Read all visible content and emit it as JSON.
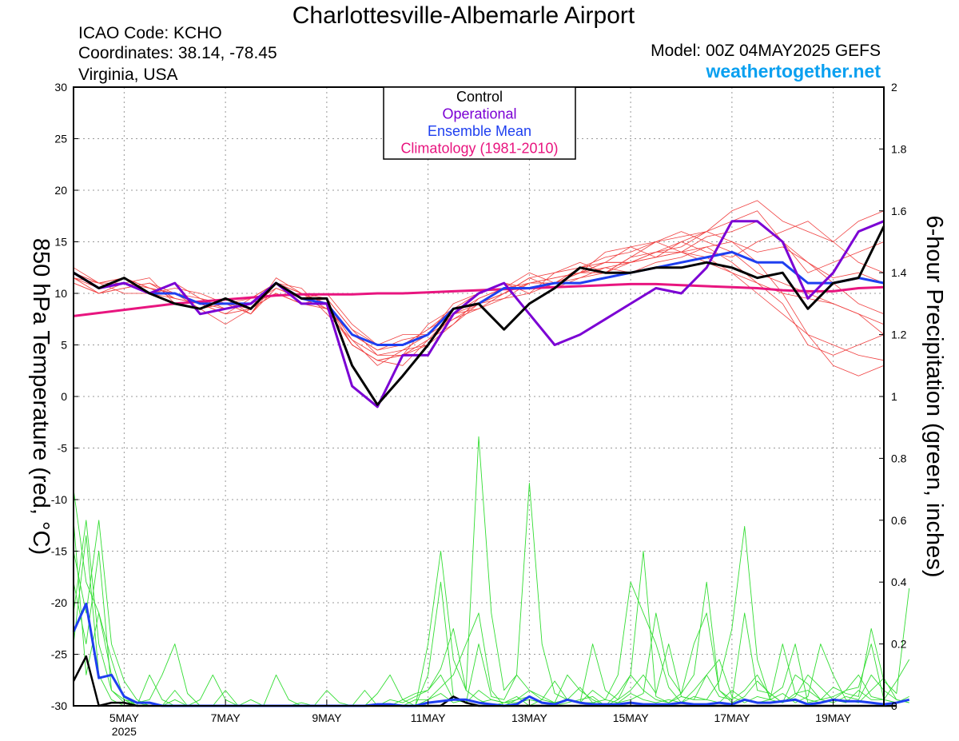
{
  "header": {
    "title": "Charlottesville-Albemarle Airport",
    "icao": "ICAO Code: KCHO",
    "coords": "Coordinates: 38.14, -78.45",
    "region": "Virginia, USA",
    "model": "Model: 00Z 04MAY2025 GEFS",
    "site": "weathertogether.net"
  },
  "colors": {
    "control": "#000000",
    "operational": "#7b00d4",
    "mean": "#1e3ff0",
    "climatology": "#e8157f",
    "members_temp": "#f04040",
    "members_precip": "#33dd33",
    "site": "#0aa0f0"
  },
  "chart_data": {
    "type": "line",
    "ylabel": "850 hPa Temperature (red, °C)",
    "y2label": "6-hour Precipitation (green, inches)",
    "ylim": [
      -30,
      30
    ],
    "y2lim": [
      0,
      2
    ],
    "yticks": [
      "30",
      "25",
      "20",
      "15",
      "10",
      "5",
      "0",
      "-5",
      "-10",
      "-15",
      "-20",
      "-25",
      "-30"
    ],
    "y2ticks": [
      "2",
      "1.8",
      "1.6",
      "1.4",
      "1.2",
      "1",
      "0.8",
      "0.6",
      "0.4",
      "0.2",
      "0"
    ],
    "x_range": [
      "2025-05-04T00",
      "2025-05-20T00"
    ],
    "xticks": [
      {
        "date": "2025-05-05",
        "label": "5MAY",
        "sublabel": "2025"
      },
      {
        "date": "2025-05-07",
        "label": "7MAY"
      },
      {
        "date": "2025-05-09",
        "label": "9MAY"
      },
      {
        "date": "2025-05-11",
        "label": "11MAY"
      },
      {
        "date": "2025-05-13",
        "label": "13MAY"
      },
      {
        "date": "2025-05-15",
        "label": "15MAY"
      },
      {
        "date": "2025-05-17",
        "label": "17MAY"
      },
      {
        "date": "2025-05-19",
        "label": "19MAY"
      }
    ],
    "grid": true,
    "legend": {
      "position": "top-center",
      "entries": [
        {
          "label": "Control",
          "color": "#000000"
        },
        {
          "label": "Operational",
          "color": "#7b00d4"
        },
        {
          "label": "Ensemble Mean",
          "color": "#1e3ff0"
        },
        {
          "label": "Climatology (1981-2010)",
          "color": "#e8157f"
        }
      ]
    },
    "temperature": {
      "step_days": 0.5,
      "climatology": [
        7.8,
        8.1,
        8.4,
        8.7,
        9.0,
        9.2,
        9.4,
        9.6,
        9.8,
        9.9,
        9.9,
        9.9,
        10.0,
        10.0,
        10.1,
        10.2,
        10.3,
        10.4,
        10.5,
        10.6,
        10.7,
        10.8,
        10.9,
        10.9,
        10.8,
        10.7,
        10.6,
        10.5,
        10.3,
        10.2,
        10.2,
        10.5,
        10.6
      ],
      "control": [
        12,
        10.5,
        11.5,
        10,
        9,
        8.5,
        9.5,
        8.5,
        11,
        9.5,
        9.5,
        3,
        -0.8,
        2,
        5,
        8.5,
        9,
        6.5,
        9,
        10.5,
        12.5,
        12,
        12,
        12.5,
        12.5,
        13,
        12.5,
        11.5,
        12,
        8.5,
        11,
        11.5,
        16.5
      ],
      "operational": [
        12,
        10.5,
        11,
        10,
        11,
        8,
        8.5,
        9,
        11,
        9,
        9,
        1,
        -1,
        4,
        4,
        8,
        10,
        11,
        8,
        5,
        6,
        7.5,
        9,
        10.5,
        10,
        12.5,
        17,
        17,
        15,
        9.5,
        12,
        16,
        17
      ],
      "mean": [
        12,
        10.5,
        11,
        10,
        10,
        9,
        9,
        9,
        11,
        9.5,
        9,
        6,
        5,
        5,
        6,
        8.5,
        9,
        10.5,
        10.5,
        11,
        11,
        11.5,
        12,
        12.5,
        13,
        13.5,
        14,
        13,
        13,
        11,
        11,
        11.5,
        11
      ],
      "members": [
        [
          12,
          11,
          11.5,
          10.5,
          10,
          9.5,
          9,
          8.5,
          10,
          9,
          8.5,
          6,
          4.5,
          5,
          6.5,
          8,
          9,
          10,
          11,
          11.5,
          12,
          12.5,
          13,
          13.5,
          14,
          14.5,
          15,
          14,
          14.5,
          13,
          11.5,
          12,
          11
        ],
        [
          11.5,
          10,
          10.5,
          11,
          9.5,
          9,
          8,
          9.5,
          11,
          10,
          9,
          5,
          3.5,
          4,
          5.5,
          7,
          9.5,
          10.5,
          12,
          11,
          12.5,
          13,
          14.5,
          15,
          14,
          15.5,
          16,
          17,
          15,
          12,
          13,
          14,
          15
        ],
        [
          12,
          10.5,
          11,
          10,
          10.5,
          10,
          9,
          8,
          10.5,
          9.5,
          10,
          7,
          5,
          6,
          6,
          9,
          10,
          11,
          10,
          12,
          13,
          12,
          13.5,
          14,
          15,
          14,
          13.5,
          15,
          16,
          17,
          15,
          13,
          12
        ],
        [
          11,
          10,
          11,
          11.5,
          9,
          8.5,
          7,
          8.5,
          11,
          10.5,
          8,
          5.5,
          3,
          4.5,
          5,
          8,
          8.5,
          10,
          11.5,
          10.5,
          11.5,
          12.5,
          12,
          13,
          13.5,
          14.5,
          13,
          11,
          9,
          5,
          4,
          5,
          6
        ],
        [
          12.5,
          11,
          10,
          10,
          11,
          9.5,
          8.5,
          9,
          10,
          9,
          9.5,
          6.5,
          4,
          4,
          7,
          8.5,
          10,
          11,
          10.5,
          11,
          12,
          14,
          14.5,
          13.5,
          15,
          16,
          15,
          13,
          10,
          6,
          3,
          2,
          3
        ],
        [
          11.5,
          10.5,
          11.5,
          10.5,
          10,
          9,
          9.5,
          8,
          11.5,
          10,
          9,
          6,
          4.5,
          5.5,
          6,
          7.5,
          9,
          9.5,
          11,
          11.5,
          12,
          13,
          13,
          14,
          14.5,
          16,
          17,
          18,
          15,
          13,
          11,
          9,
          8
        ],
        [
          12,
          11,
          11,
          10,
          9.5,
          9,
          8.5,
          9,
          10.5,
          9.5,
          8.5,
          5,
          3.5,
          3,
          5.5,
          8,
          9.5,
          10.5,
          11,
          11,
          12,
          12,
          13.5,
          15,
          16,
          15,
          14,
          12,
          11,
          10,
          9,
          8,
          7
        ],
        [
          11,
          10,
          10.5,
          11,
          10,
          8.5,
          9,
          9.5,
          11,
          10,
          9.5,
          6.5,
          5,
          5,
          6.5,
          8.5,
          9,
          10,
          11.5,
          12,
          12.5,
          13.5,
          14,
          15,
          15.5,
          16,
          18,
          19,
          17,
          16,
          15,
          17,
          18
        ],
        [
          12,
          10.5,
          11,
          10.5,
          10,
          9,
          8,
          8.5,
          10,
          9,
          9,
          5.5,
          4,
          4.5,
          6,
          7.5,
          8.5,
          9.5,
          10,
          11,
          11.5,
          12,
          13,
          13.5,
          14,
          13,
          12,
          10,
          8,
          6,
          5,
          4,
          3.5
        ],
        [
          11.5,
          11,
          11.5,
          10.5,
          9.5,
          9,
          9,
          8,
          11,
          10,
          8.5,
          5,
          3.5,
          4,
          5,
          7,
          9,
          10,
          11,
          11,
          12,
          13,
          13,
          14,
          14,
          13.5,
          12,
          11,
          10,
          9.5,
          9,
          8,
          6
        ]
      ]
    },
    "precipitation": {
      "step_days": 0.25,
      "control": [
        0.08,
        0.16,
        0,
        0.01,
        0.01,
        0,
        0,
        0,
        0,
        0,
        0,
        0,
        0,
        0,
        0,
        0,
        0,
        0,
        0,
        0,
        0,
        0,
        0,
        0,
        0,
        0,
        0,
        0,
        0,
        0,
        0.03,
        0.01,
        0,
        0,
        0,
        0,
        0,
        0,
        0,
        0,
        0,
        0,
        0,
        0,
        0,
        0,
        0,
        0,
        0,
        0,
        0,
        0,
        0,
        0,
        0,
        0,
        0,
        0,
        0,
        0,
        0,
        0,
        0,
        0,
        0,
        0
      ],
      "mean": [
        0.24,
        0.33,
        0.09,
        0.1,
        0.03,
        0.01,
        0.01,
        0,
        0,
        0,
        0,
        0,
        0,
        0,
        0,
        0,
        0,
        0,
        0,
        0,
        0,
        0,
        0,
        0,
        0.005,
        0.005,
        0,
        0,
        0.01,
        0.015,
        0.02,
        0.02,
        0.01,
        0.005,
        0,
        0.005,
        0.03,
        0.01,
        0.005,
        0.02,
        0.01,
        0.005,
        0.005,
        0.005,
        0.01,
        0.005,
        0.005,
        0.005,
        0.01,
        0.005,
        0.005,
        0.01,
        0.005,
        0.02,
        0.01,
        0.01,
        0.015,
        0.02,
        0.005,
        0.01,
        0.02,
        0.015,
        0.015,
        0.01,
        0.005,
        0.01,
        0.02
      ],
      "members": [
        [
          0.5,
          0.3,
          0.6,
          0.2,
          0.08,
          0.02,
          0,
          0,
          0.05,
          0,
          0.02,
          0.1,
          0.02,
          0,
          0,
          0,
          0,
          0,
          0,
          0,
          0,
          0,
          0,
          0,
          0,
          0,
          0,
          0,
          0.02,
          0.06,
          0.1,
          0.2,
          0.3,
          0.05,
          0,
          0.02,
          0.05,
          0.02,
          0.01,
          0.1,
          0.05,
          0.02,
          0,
          0.04,
          0.1,
          0.5,
          0.03,
          0.01,
          0.04,
          0.2,
          0.3,
          0.05,
          0.01,
          0.03,
          0.08,
          0.04,
          0.01,
          0.1,
          0.07,
          0.02,
          0.03,
          0.05,
          0.06,
          0.2,
          0.02,
          0.01,
          0.03
        ],
        [
          0.7,
          0.4,
          0.3,
          0.1,
          0.03,
          0,
          0.1,
          0.02,
          0,
          0,
          0,
          0,
          0,
          0,
          0,
          0,
          0,
          0,
          0,
          0,
          0.05,
          0.01,
          0,
          0,
          0,
          0,
          0.02,
          0.04,
          0.05,
          0.12,
          0.25,
          0.05,
          0.02,
          0,
          0.01,
          0.03,
          0,
          0.02,
          0.08,
          0.02,
          0.01,
          0.05,
          0.02,
          0.1,
          0.4,
          0.3,
          0.2,
          0.06,
          0.01,
          0.05,
          0.1,
          0.03,
          0.02,
          0.3,
          0.05,
          0.04,
          0.01,
          0.03,
          0.1,
          0.06,
          0.02,
          0.05,
          0.1,
          0.03,
          0.02,
          0.08,
          0.15
        ],
        [
          0.3,
          0.6,
          0.2,
          0.05,
          0.02,
          0.01,
          0,
          0,
          0,
          0,
          0,
          0,
          0,
          0,
          0.02,
          0,
          0,
          0,
          0,
          0,
          0,
          0,
          0,
          0,
          0.04,
          0.1,
          0.02,
          0,
          0.2,
          0.5,
          0.15,
          0.05,
          0.87,
          0.3,
          0.05,
          0.1,
          0.72,
          0.2,
          0.04,
          0.02,
          0.06,
          0.01,
          0,
          0.02,
          0.05,
          0.1,
          0.04,
          0.2,
          0.03,
          0.02,
          0.02,
          0.08,
          0.25,
          0.58,
          0.15,
          0.02,
          0.04,
          0.01,
          0.03,
          0.2,
          0.1,
          0.02,
          0.01,
          0.05,
          0.09,
          0.02,
          0.01
        ],
        [
          0.2,
          0.55,
          0.1,
          0.02,
          0,
          0,
          0,
          0,
          0.02,
          0,
          0,
          0,
          0,
          0,
          0,
          0,
          0.1,
          0.02,
          0,
          0,
          0,
          0,
          0,
          0,
          0,
          0,
          0,
          0,
          0.1,
          0.4,
          0.03,
          0.01,
          0.05,
          0.02,
          0.01,
          0.02,
          0.03,
          0.01,
          0,
          0.01,
          0.02,
          0.03,
          0,
          0.01,
          0.02,
          0.04,
          0.3,
          0.1,
          0.04,
          0.1,
          0.4,
          0.05,
          0.02,
          0.05,
          0.1,
          0.03,
          0.06,
          0.2,
          0.01,
          0.02,
          0.06,
          0.04,
          0.03,
          0.25,
          0.08,
          0.04,
          0.38
        ],
        [
          0.4,
          0.2,
          0.5,
          0.05,
          0.01,
          0.01,
          0.02,
          0.1,
          0.2,
          0.04,
          0,
          0,
          0,
          0,
          0,
          0,
          0,
          0,
          0,
          0,
          0,
          0,
          0,
          0.05,
          0,
          0.02,
          0.01,
          0.03,
          0.05,
          0.1,
          0.02,
          0.01,
          0.2,
          0.03,
          0.02,
          0.1,
          0.05,
          0.03,
          0.01,
          0.02,
          0.01,
          0.2,
          0.05,
          0.02,
          0.1,
          0.05,
          0.02,
          0.01,
          0.03,
          0.02,
          0.1,
          0.15,
          0.03,
          0.01,
          0.03,
          0.02,
          0.2,
          0.04,
          0.05,
          0.02,
          0.01,
          0.03,
          0.02,
          0.1,
          0.05,
          0.02,
          0.01
        ],
        [
          0.6,
          0.1,
          0.3,
          0.15,
          0.02,
          0,
          0,
          0,
          0,
          0,
          0,
          0,
          0.05,
          0,
          0,
          0,
          0,
          0,
          0.01,
          0,
          0,
          0,
          0,
          0,
          0,
          0,
          0,
          0.02,
          0.02,
          0.04,
          0.01,
          0.02,
          0.01,
          0.02,
          0.01,
          0.01,
          0.02,
          0.01,
          0.01,
          0.02,
          0.01,
          0.01,
          0.02,
          0.01,
          0.04,
          0.02,
          0.01,
          0.02,
          0.01,
          0.03,
          0.02,
          0.01,
          0.05,
          0.02,
          0.01,
          0.02,
          0.01,
          0.04,
          0.02,
          0.01,
          0.02,
          0.01,
          0.05,
          0.02,
          0.02,
          0.01,
          0.02
        ]
      ]
    }
  }
}
